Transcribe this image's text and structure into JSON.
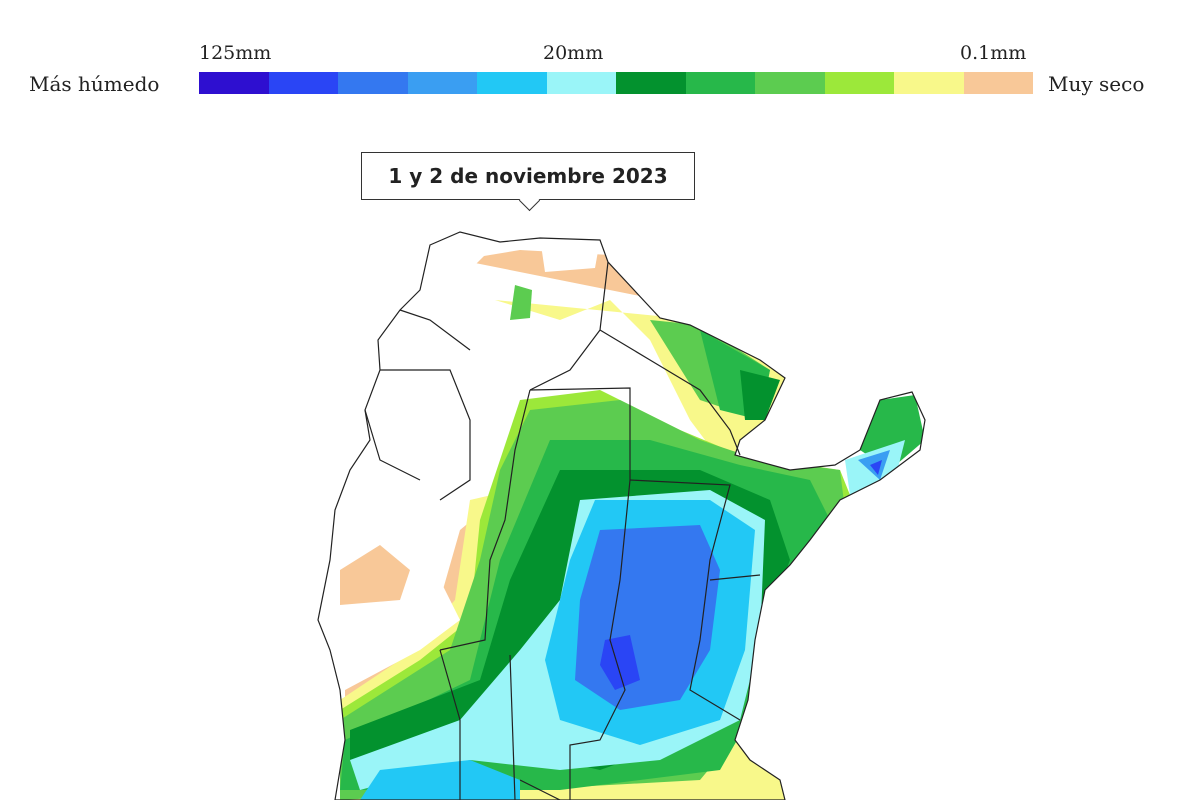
{
  "legend": {
    "left_label": "Más húmedo",
    "right_label": "Muy seco",
    "ticks": [
      "125mm",
      "20mm",
      "0.1mm"
    ],
    "colors": [
      "#2e0fd0",
      "#2a45f5",
      "#3478f0",
      "#3a9ef2",
      "#22c8f5",
      "#9af5f8",
      "#03922e",
      "#27b84a",
      "#5ccc50",
      "#9ce83a",
      "#f8f88a",
      "#f8c898"
    ]
  },
  "map": {
    "title": "1 y 2 de noviembre 2023"
  }
}
